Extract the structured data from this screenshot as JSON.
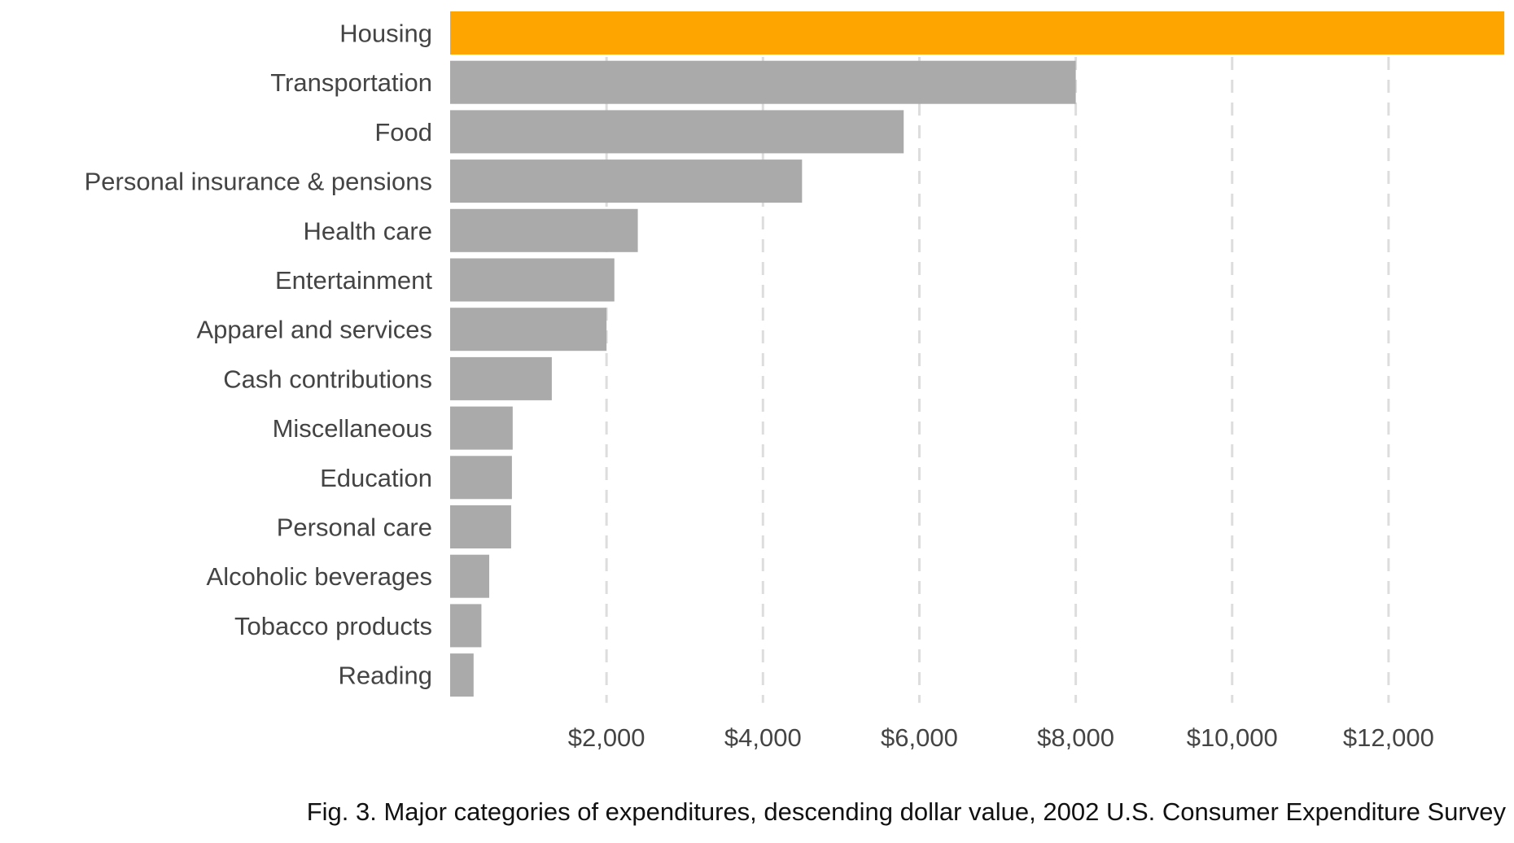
{
  "chart_data": {
    "type": "bar",
    "orientation": "horizontal",
    "categories": [
      "Housing",
      "Transportation",
      "Food",
      "Personal insurance & pensions",
      "Health care",
      "Entertainment",
      "Apparel and services",
      "Cash contributions",
      "Miscellaneous",
      "Education",
      "Personal care",
      "Alcoholic beverages",
      "Tobacco products",
      "Reading"
    ],
    "values": [
      13480,
      8000,
      5800,
      4500,
      2400,
      2100,
      2000,
      1300,
      800,
      790,
      780,
      500,
      400,
      300
    ],
    "xlim": [
      0,
      13500
    ],
    "x_ticks": [
      2000,
      4000,
      6000,
      8000,
      10000,
      12000
    ],
    "x_tick_labels": [
      "$2,000",
      "$4,000",
      "$6,000",
      "$8,000",
      "$10,000",
      "$12,000"
    ],
    "highlight_index": 0,
    "colors": {
      "highlight": "#FFA500",
      "bar": "#AAAAAA",
      "grid": "#DDDDDD",
      "text": "#444444"
    },
    "grid": "vertical dashed",
    "legend": "none",
    "caption": "Fig. 3. Major categories of expenditures, descending dollar value, 2002 U.S. Consumer Expenditure Survey"
  }
}
